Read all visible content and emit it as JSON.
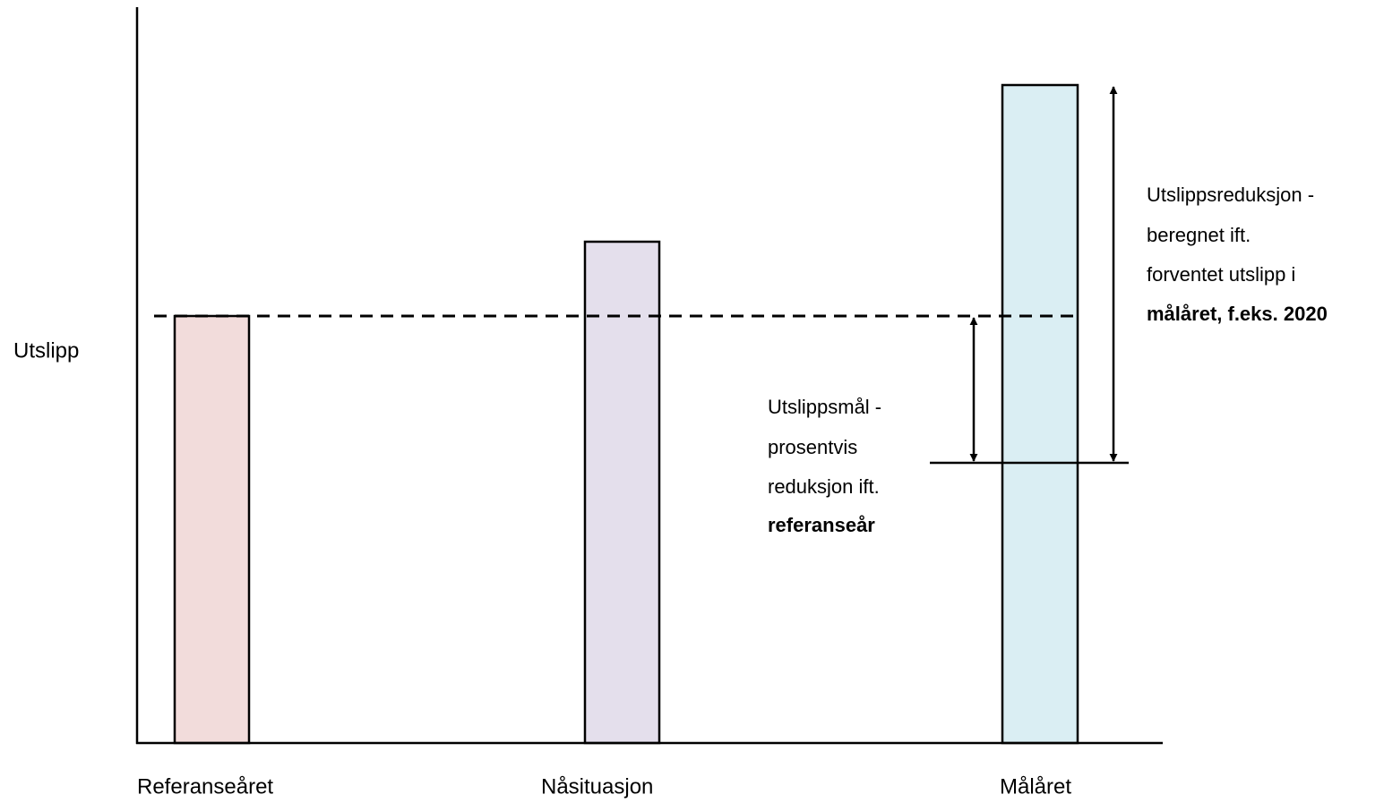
{
  "y_axis_label": "Utslipp",
  "bars": [
    {
      "label": "Referanseåret"
    },
    {
      "label": "Nåsituasjon"
    },
    {
      "label": "Målåret"
    }
  ],
  "annotations": [
    {
      "lines": [
        "Utslippsmål  -",
        "prosentvis",
        "reduksjon ift.",
        "referanseår"
      ]
    },
    {
      "lines": [
        "Utslippsreduksjon  -",
        "beregnet  ift.",
        "forventet  utslipp i",
        "målåret, f.eks. 2020"
      ]
    }
  ]
}
